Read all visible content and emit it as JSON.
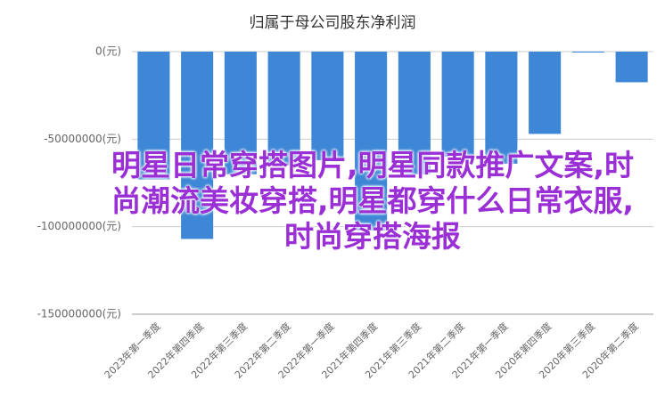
{
  "chart_data": {
    "type": "bar",
    "title": "归属于母公司股东净利润",
    "categories": [
      "2023年第一季度",
      "2022年第四季度",
      "2022年第三季度",
      "2022年第二季度",
      "2022年第一季度",
      "2021年第四季度",
      "2021年第三季度",
      "2021年第二季度",
      "2021年第一季度",
      "2020年第四季度",
      "2020年第三季度",
      "2020年第二季度"
    ],
    "values": [
      -73000000,
      -107000000,
      -70000000,
      -65000000,
      -62000000,
      -102000000,
      -70000000,
      -60000000,
      -64000000,
      -47000000,
      -500000,
      -17500000
    ],
    "color": "#3d87d6",
    "ylim": [
      -150000000,
      0
    ],
    "yticks": [
      {
        "value": 0,
        "label": "0(元)"
      },
      {
        "value": -50000000,
        "label": "-50000000(元)"
      },
      {
        "value": -100000000,
        "label": "-100000000(元)"
      },
      {
        "value": -150000000,
        "label": "-150000000(元)"
      }
    ],
    "grid": true
  },
  "watermark": "明星日常穿搭图片,明星同款推广文案,时尚潮流美妆穿搭,明星都穿什么日常衣服,时尚穿搭海报"
}
